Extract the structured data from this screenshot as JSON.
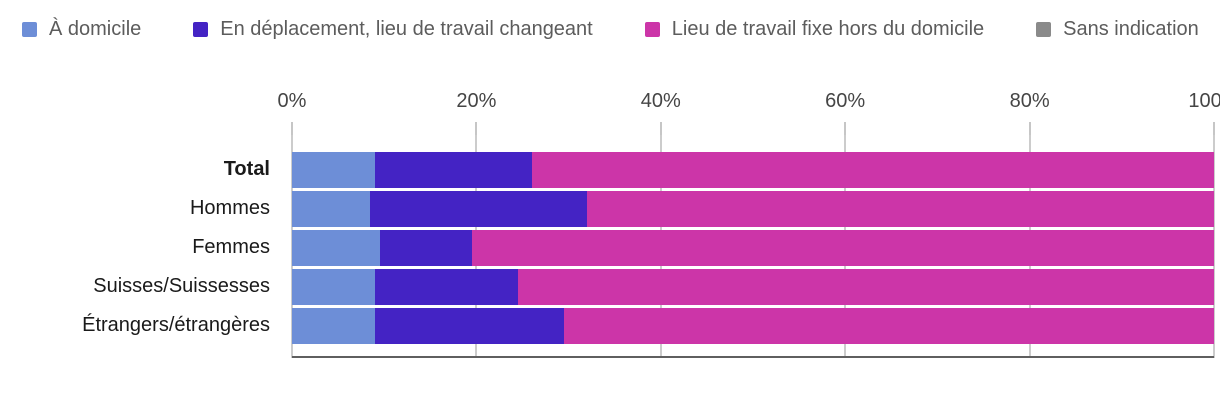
{
  "chart_data": {
    "type": "bar",
    "orientation": "horizontal-stacked",
    "title": "",
    "categories": [
      "Total",
      "Hommes",
      "Femmes",
      "Suisses/Suissesses",
      "Étrangers/étrangères"
    ],
    "series": [
      {
        "name": "À domicile",
        "color": "#6d8ed7",
        "values": [
          9,
          8.5,
          9.5,
          9,
          9
        ]
      },
      {
        "name": "En déplacement, lieu de travail changeant",
        "color": "#4423c4",
        "values": [
          17,
          23.5,
          10,
          15.5,
          20.5
        ]
      },
      {
        "name": "Lieu de travail fixe hors du domicile",
        "color": "#cc35a8",
        "values": [
          74,
          68,
          80.5,
          75.5,
          70.5
        ]
      },
      {
        "name": "Sans indication",
        "color": "#8a8a8a",
        "values": [
          0,
          0,
          0,
          0,
          0
        ]
      }
    ],
    "x_ticks": [
      "0%",
      "20%",
      "40%",
      "60%",
      "80%",
      "100%"
    ],
    "xlim": [
      0,
      100
    ],
    "grid": "vertical",
    "legend_position": "top-left"
  }
}
